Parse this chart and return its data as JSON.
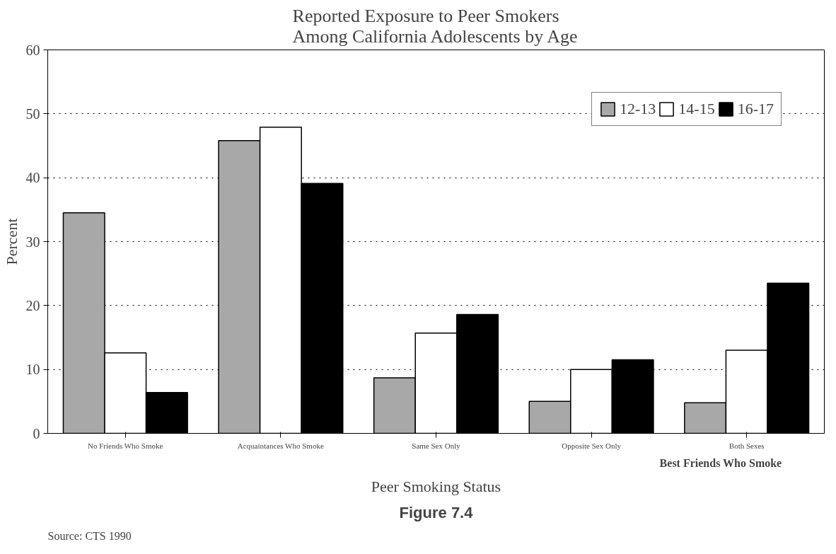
{
  "chart_data": {
    "type": "bar",
    "title": "Reported Exposure to Peer Smokers Among California Adolescents by Age",
    "xlabel": "Peer Smoking Status",
    "ylabel": "Percent",
    "categories": [
      "No Friends Who Smoke",
      "Acquaintances Who Smoke",
      "Same Sex Only",
      "Opposite Sex Only",
      "Both Sexes"
    ],
    "series": [
      {
        "name": "12-13",
        "color": "#a8a8a8",
        "values": [
          34.5,
          45.8,
          8.7,
          5.0,
          4.8
        ]
      },
      {
        "name": "14-15",
        "color": "#ffffff",
        "values": [
          12.6,
          47.9,
          15.7,
          10.0,
          13.0
        ]
      },
      {
        "name": "16-17",
        "color": "#000000",
        "values": [
          6.4,
          39.1,
          18.6,
          11.5,
          23.5
        ]
      }
    ],
    "ylim": [
      0,
      60
    ],
    "yticks": [
      0,
      10,
      20,
      30,
      40,
      50,
      60
    ],
    "grid": "y",
    "legend": "top right",
    "annotations": [
      "Best Friends Who Smoke",
      "Figure 7.4",
      "Source: CTS 1990"
    ]
  }
}
